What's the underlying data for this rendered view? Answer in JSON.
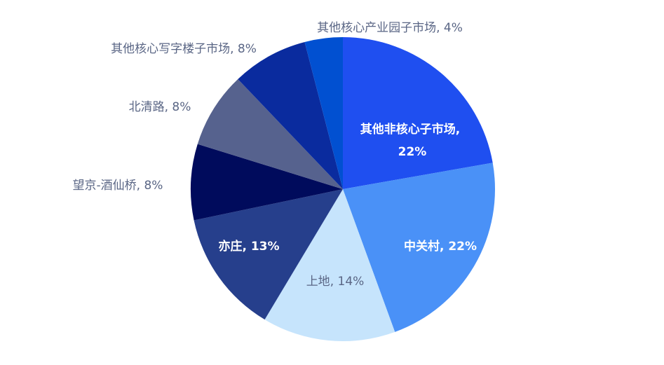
{
  "chart_data": {
    "type": "pie",
    "categories": [
      "其他非核心子市场",
      "中关村",
      "上地",
      "亦庄",
      "望京-酒仙桥",
      "北清路",
      "其他核心写字楼子市场",
      "其他核心产业园子市场"
    ],
    "values": [
      22,
      22,
      14,
      13,
      8,
      8,
      8,
      4
    ],
    "value_labels": [
      "22%",
      "22%",
      "14%",
      "13%",
      "8%",
      "8%",
      "8%",
      "4%"
    ],
    "label_separator": ", ",
    "colors": [
      "#1f4ff0",
      "#4a91f7",
      "#c6e4fc",
      "#263f8c",
      "#000b5c",
      "#56628e",
      "#0a2b9e",
      "#0150d1"
    ]
  }
}
